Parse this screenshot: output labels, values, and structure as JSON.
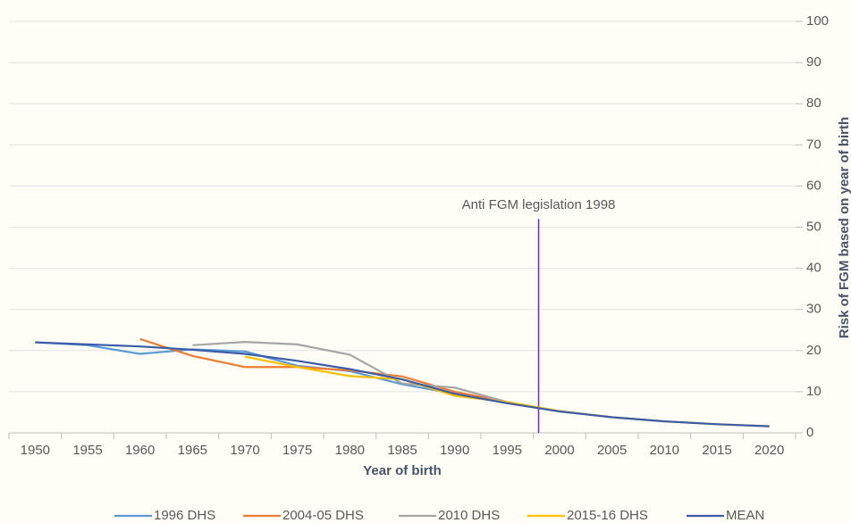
{
  "chart_data": {
    "type": "line",
    "x": [
      1950,
      1955,
      1960,
      1965,
      1970,
      1975,
      1980,
      1985,
      1990,
      1995,
      2000,
      2005,
      2010,
      2015,
      2020
    ],
    "xlim": [
      1947.5,
      2022.5
    ],
    "xticks": [
      1950,
      1955,
      1960,
      1965,
      1970,
      1975,
      1980,
      1985,
      1990,
      1995,
      2000,
      2005,
      2010,
      2015,
      2020
    ],
    "ylim": [
      0,
      100
    ],
    "yticks": [
      0,
      10,
      20,
      30,
      40,
      50,
      60,
      70,
      80,
      90,
      100
    ],
    "xlabel": "Year of birth",
    "ylabel": "Risk of FGM based on year of birth",
    "grid": true,
    "legend": "bottom",
    "series": [
      {
        "name": "1996 DHS",
        "color": "#5b9bd5",
        "values": [
          22,
          21.3,
          19.2,
          20.3,
          19.8,
          16.3,
          15,
          11.8,
          9.5,
          null,
          null,
          null,
          null,
          null,
          null
        ]
      },
      {
        "name": "2004-05 DHS",
        "color": "#ed7d31",
        "values": [
          null,
          null,
          22.8,
          18.7,
          16,
          16,
          15.2,
          13.7,
          10,
          7.5,
          null,
          null,
          null,
          null,
          null
        ]
      },
      {
        "name": "2010 DHS",
        "color": "#a5a5a5",
        "values": [
          null,
          null,
          null,
          21.3,
          22.1,
          21.5,
          19,
          12,
          11,
          7.5,
          5.2,
          null,
          null,
          null,
          null
        ]
      },
      {
        "name": "2015-16 DHS",
        "color": "#ffc000",
        "values": [
          null,
          null,
          null,
          null,
          18.5,
          16,
          13.8,
          13,
          9,
          7.5,
          5.3,
          3.8,
          2.8,
          2.1,
          1.6
        ]
      },
      {
        "name": "MEAN",
        "color": "#3b5ca8",
        "values": [
          22,
          21.5,
          21,
          20.2,
          19.2,
          17.5,
          15.5,
          13,
          9.5,
          7.2,
          5.2,
          3.8,
          2.8,
          2.1,
          1.6
        ]
      }
    ],
    "annotation": {
      "text": "Anti FGM legislation 1998",
      "x": 1998,
      "y": 52,
      "color": "#7030a0"
    }
  }
}
